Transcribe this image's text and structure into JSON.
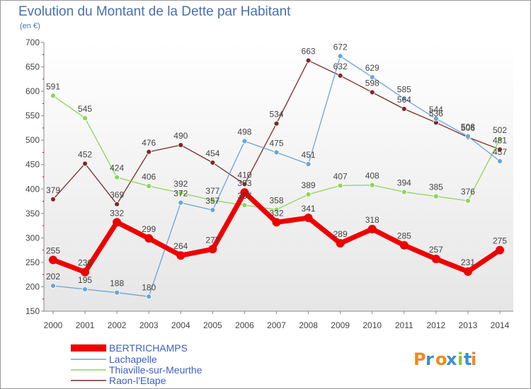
{
  "chart_data": {
    "type": "line",
    "title": "Evolution du Montant de la Dette par Habitant",
    "subtitle": "(en €)",
    "xlabel": "",
    "ylabel": "",
    "ylim": [
      150,
      700
    ],
    "yticks": [
      150,
      200,
      250,
      300,
      350,
      400,
      450,
      500,
      550,
      600,
      650,
      700
    ],
    "grid": false,
    "legend_position": "bottom-left",
    "categories": [
      "2000",
      "2001",
      "2002",
      "2003",
      "2004",
      "2005",
      "2006",
      "2007",
      "2008",
      "2009",
      "2010",
      "2011",
      "2012",
      "2013",
      "2014"
    ],
    "series": [
      {
        "name": "BERTRICHAMPS",
        "color": "#ee0000",
        "values": [
          255,
          230,
          332,
          299,
          264,
          277,
          393,
          332,
          341,
          289,
          318,
          285,
          257,
          231,
          275
        ]
      },
      {
        "name": "Lachapelle",
        "color": "#6aa4d8",
        "values": [
          202,
          195,
          188,
          180,
          372,
          357,
          498,
          475,
          451,
          672,
          629,
          585,
          544,
          508,
          457
        ]
      },
      {
        "name": "Thiaville-sur-Meurthe",
        "color": "#8ed35a",
        "values": [
          591,
          545,
          424,
          406,
          392,
          377,
          367,
          358,
          389,
          407,
          408,
          394,
          385,
          376,
          502
        ]
      },
      {
        "name": "Raon-l'Etape",
        "color": "#7a2a2a",
        "values": [
          379,
          452,
          369,
          476,
          490,
          454,
          410,
          534,
          663,
          632,
          598,
          564,
          536,
          506,
          481
        ]
      }
    ]
  },
  "brand": {
    "logo_text": "Proxiti",
    "colors": [
      "#f08a1c",
      "#3a8fd0",
      "#f08a1c",
      "#3a8fd0",
      "#8cc63f",
      "#3a8fd0",
      "#f08a1c"
    ]
  }
}
